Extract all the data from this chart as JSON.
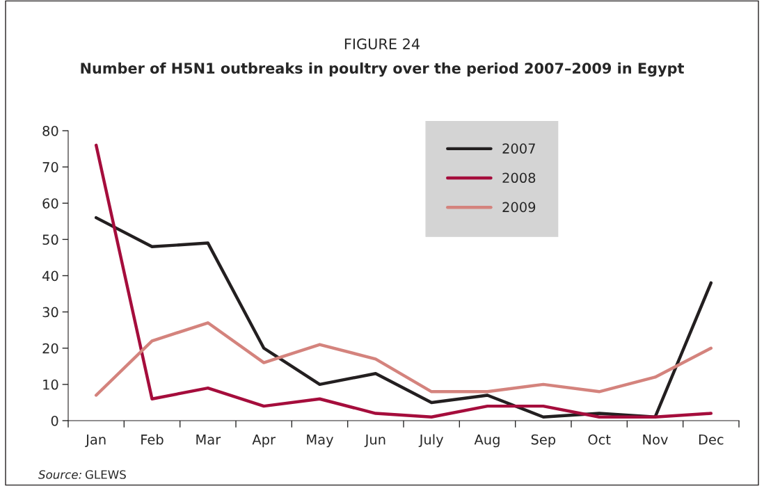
{
  "chart_data": {
    "type": "line",
    "title": "FIGURE 24",
    "subtitle": "Number of H5N1 outbreaks in poultry over the period 2007–2009 in Egypt",
    "categories": [
      "Jan",
      "Feb",
      "Mar",
      "Apr",
      "May",
      "Jun",
      "July",
      "Aug",
      "Sep",
      "Oct",
      "Nov",
      "Dec"
    ],
    "series": [
      {
        "name": "2007",
        "color": "#231f20",
        "values": [
          56,
          48,
          49,
          20,
          10,
          13,
          5,
          7,
          1,
          2,
          1,
          38
        ]
      },
      {
        "name": "2008",
        "color": "#a50d3c",
        "values": [
          76,
          6,
          9,
          4,
          6,
          2,
          1,
          4,
          4,
          1,
          1,
          2
        ]
      },
      {
        "name": "2009",
        "color": "#d4837d",
        "values": [
          7,
          22,
          27,
          16,
          21,
          17,
          8,
          8,
          10,
          8,
          12,
          20
        ]
      }
    ],
    "ylim": [
      0,
      80
    ],
    "yticks": [
      0,
      10,
      20,
      30,
      40,
      50,
      60,
      70,
      80
    ],
    "grid": false,
    "legend": "top right",
    "marker": "none",
    "line_style": "solid",
    "annotations": [
      "Source: GLEWS"
    ]
  }
}
